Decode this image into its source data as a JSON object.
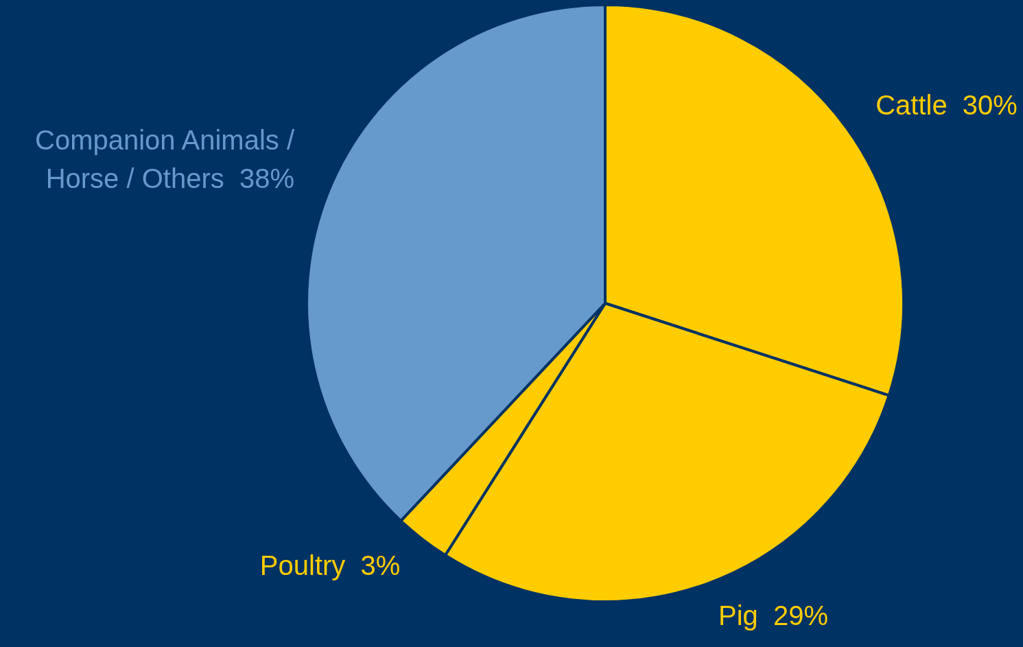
{
  "chart_data": {
    "type": "pie",
    "categories": [
      "Cattle",
      "Pig",
      "Poultry",
      "Companion Animals / Horse / Others"
    ],
    "values": [
      30,
      29,
      3,
      38
    ],
    "colors": [
      "#ffcc00",
      "#ffcc00",
      "#ffcc00",
      "#6699cc"
    ],
    "value_labels": [
      "30%",
      "29%",
      "3%",
      "38%"
    ],
    "legend": false
  }
}
